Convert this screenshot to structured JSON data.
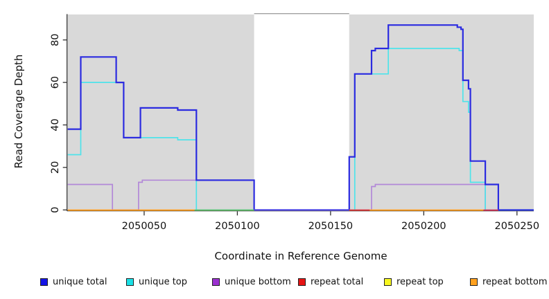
{
  "chart_data": {
    "type": "line",
    "subtype": "step-coverage",
    "title": "",
    "xlabel": "Coordinate in Reference Genome",
    "ylabel": "Read Coverage Depth",
    "xlim": [
      2050009,
      2050259
    ],
    "ylim": [
      0,
      92
    ],
    "x_ticks": [
      2050050,
      2050100,
      2050150,
      2050200,
      2050250
    ],
    "y_ticks": [
      0,
      20,
      40,
      60,
      80
    ],
    "grid": false,
    "plot_background": "#d9d9d9",
    "masked_region": {
      "x0": 2050109,
      "x1": 2050160,
      "color": "#ffffff",
      "note": "white band, no shading"
    },
    "legend_position": "bottom",
    "series": [
      {
        "name": "unique total",
        "color": "#2b2be0",
        "width": 2.2,
        "steps": [
          [
            2050009,
            38
          ],
          [
            2050016,
            72
          ],
          [
            2050035,
            60
          ],
          [
            2050039,
            34
          ],
          [
            2050048,
            48
          ],
          [
            2050068,
            47
          ],
          [
            2050078,
            14
          ],
          [
            2050109,
            0
          ],
          [
            2050160,
            25
          ],
          [
            2050163,
            64
          ],
          [
            2050172,
            75
          ],
          [
            2050174,
            76
          ],
          [
            2050181,
            87
          ],
          [
            2050218,
            86
          ],
          [
            2050220,
            85
          ],
          [
            2050221,
            61
          ],
          [
            2050224,
            57
          ],
          [
            2050225,
            23
          ],
          [
            2050233,
            12
          ],
          [
            2050240,
            0
          ]
        ]
      },
      {
        "name": "unique top",
        "color": "#4ee3ea",
        "width": 1.7,
        "steps": [
          [
            2050009,
            26
          ],
          [
            2050016,
            60
          ],
          [
            2050039,
            34
          ],
          [
            2050068,
            33
          ],
          [
            2050078,
            0
          ],
          [
            2050163,
            64
          ],
          [
            2050181,
            76
          ],
          [
            2050219,
            75
          ],
          [
            2050221,
            51
          ],
          [
            2050224,
            46
          ],
          [
            2050225,
            13
          ],
          [
            2050233,
            0
          ]
        ]
      },
      {
        "name": "unique bottom",
        "color": "#b288d8",
        "width": 1.7,
        "steps": [
          [
            2050009,
            12
          ],
          [
            2050033,
            0
          ],
          [
            2050047,
            13
          ],
          [
            2050049,
            14
          ],
          [
            2050109,
            0
          ],
          [
            2050172,
            11
          ],
          [
            2050174,
            12
          ],
          [
            2050233,
            0
          ]
        ]
      },
      {
        "name": "repeat total",
        "color": "#e02020",
        "width": 1.7,
        "steps": [
          [
            2050009,
            0
          ]
        ]
      },
      {
        "name": "repeat top",
        "color": "#f5f520",
        "width": 1.7,
        "steps": [
          [
            2050009,
            0
          ]
        ]
      },
      {
        "name": "repeat bottom",
        "color": "#ff9d1e",
        "width": 2,
        "steps": [
          [
            2050009,
            0
          ]
        ]
      }
    ],
    "baseline_segments": [
      {
        "x0": 2050009,
        "x1": 2050077,
        "color": "#ff9d1e",
        "series": "repeat bottom"
      },
      {
        "x0": 2050077,
        "x1": 2050109,
        "color": "#63c06c",
        "series": "unlabeled-green"
      },
      {
        "x0": 2050109,
        "x1": 2050160,
        "color": "#5a50e6",
        "series": "unique total over unique bottom"
      },
      {
        "x0": 2050160,
        "x1": 2050171,
        "color": "#e03b3b",
        "series": "repeat total"
      },
      {
        "x0": 2050171,
        "x1": 2050232,
        "color": "#ff9d1e",
        "series": "repeat bottom"
      },
      {
        "x0": 2050232,
        "x1": 2050240,
        "color": "#d8365a",
        "series": "repeat total"
      },
      {
        "x0": 2050240,
        "x1": 2050259,
        "color": "#3340e0",
        "series": "unique total"
      }
    ],
    "legend": [
      {
        "label": "unique total",
        "color": "#1414e6"
      },
      {
        "label": "unique top",
        "color": "#1ae0e6"
      },
      {
        "label": "unique bottom",
        "color": "#9b30d0"
      },
      {
        "label": "repeat total",
        "color": "#e61414"
      },
      {
        "label": "repeat top",
        "color": "#f7f71f"
      },
      {
        "label": "repeat bottom",
        "color": "#ffa11f"
      }
    ]
  },
  "labels": {
    "x_axis_title": "Coordinate in Reference Genome",
    "y_axis_title": "Read Coverage Depth"
  }
}
